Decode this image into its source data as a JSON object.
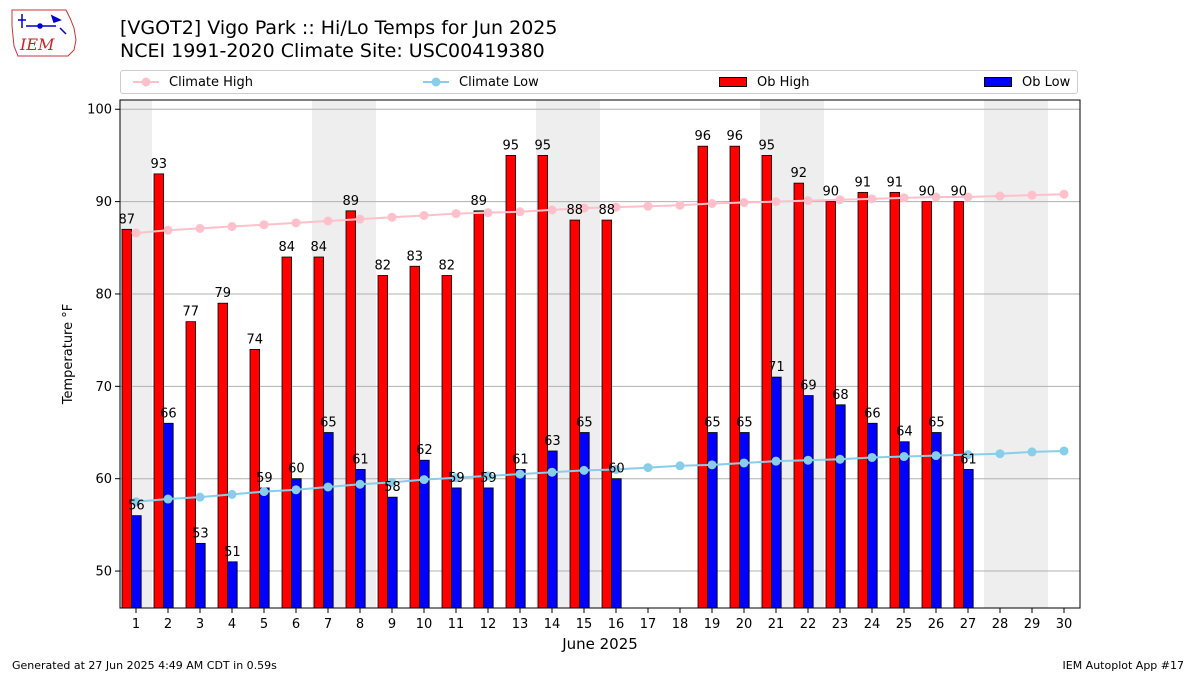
{
  "logo": {
    "text": "IEM"
  },
  "header": {
    "title_line1": "[VGOT2] Vigo Park :: Hi/Lo Temps for Jun 2025",
    "title_line2": "NCEI 1991-2020 Climate Site: USC00419380"
  },
  "legend": {
    "climate_high": "Climate High",
    "climate_low": "Climate Low",
    "ob_high": "Ob High",
    "ob_low": "Ob Low"
  },
  "footer": {
    "generated": "Generated at 27 Jun 2025 4:49 AM CDT in 0.59s",
    "app": "IEM Autoplot App #17"
  },
  "colors": {
    "ob_high": "#ff0000",
    "ob_low": "#0000ff",
    "climate_high": "#ffc0cb",
    "climate_low": "#87ceeb",
    "weekend_shade": "#eeeeee",
    "grid": "#b0b0b0"
  },
  "chart_data": {
    "type": "bar",
    "xlabel": "June 2025",
    "ylabel": "Temperature °F",
    "ylim": [
      46,
      101
    ],
    "yticks": [
      50,
      60,
      70,
      80,
      90,
      100
    ],
    "grid": "horizontal",
    "legend_position": "top",
    "categories": [
      1,
      2,
      3,
      4,
      5,
      6,
      7,
      8,
      9,
      10,
      11,
      12,
      13,
      14,
      15,
      16,
      17,
      18,
      19,
      20,
      21,
      22,
      23,
      24,
      25,
      26,
      27,
      28,
      29,
      30
    ],
    "weekend_days": [
      1,
      7,
      8,
      14,
      15,
      21,
      22,
      28,
      29
    ],
    "series": [
      {
        "name": "Ob High",
        "kind": "bar",
        "values": [
          87,
          93,
          77,
          79,
          74,
          84,
          84,
          89,
          82,
          83,
          82,
          89,
          95,
          95,
          88,
          88,
          null,
          null,
          96,
          96,
          95,
          92,
          90,
          91,
          91,
          90,
          90,
          null,
          null,
          null
        ]
      },
      {
        "name": "Ob Low",
        "kind": "bar",
        "values": [
          56,
          66,
          53,
          51,
          59,
          60,
          65,
          61,
          58,
          62,
          59,
          59,
          61,
          63,
          65,
          60,
          null,
          null,
          65,
          65,
          71,
          69,
          68,
          66,
          64,
          65,
          61,
          null,
          null,
          null
        ]
      },
      {
        "name": "Climate High",
        "kind": "line",
        "values": [
          86.6,
          86.9,
          87.1,
          87.3,
          87.5,
          87.7,
          87.9,
          88.1,
          88.3,
          88.5,
          88.7,
          88.8,
          88.9,
          89.1,
          89.3,
          89.4,
          89.5,
          89.6,
          89.8,
          89.9,
          90.0,
          90.1,
          90.2,
          90.3,
          90.4,
          90.5,
          90.5,
          90.6,
          90.7,
          90.8
        ]
      },
      {
        "name": "Climate Low",
        "kind": "line",
        "values": [
          57.5,
          57.8,
          58.0,
          58.3,
          58.6,
          58.8,
          59.1,
          59.4,
          59.6,
          59.9,
          60.1,
          60.3,
          60.5,
          60.7,
          60.9,
          61.0,
          61.2,
          61.4,
          61.5,
          61.7,
          61.9,
          62.0,
          62.1,
          62.3,
          62.4,
          62.5,
          62.6,
          62.7,
          62.9,
          63.0
        ]
      }
    ]
  }
}
